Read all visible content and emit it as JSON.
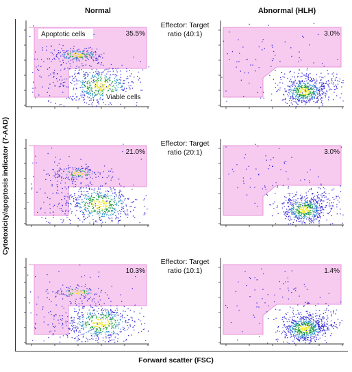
{
  "figure": {
    "column_titles": [
      "Normal",
      "Abnormal (HLH)"
    ],
    "row_labels": [
      [
        "Effector: Target",
        "ratio (40:1)"
      ],
      [
        "Effector: Target",
        "ratio (20:1)"
      ],
      [
        "Effector: Target",
        "ratio (10:1)"
      ]
    ],
    "y_axis_label": "Cytotoxicity/apoptosis indicator (7-AAD)",
    "x_axis_label": "Forward scatter (FSC)"
  },
  "colors": {
    "gate_fill": "#f7c8f0",
    "gate_stroke": "#e58fd9",
    "dot_low": "#3a2fd6",
    "dot_mid": "#1f9f3a",
    "dot_high": "#f1ea2a"
  },
  "chart_data": [
    {
      "type": "scatter",
      "column": "Normal",
      "ratio": "40:1",
      "apoptotic_percent": "35.5%",
      "gate_labels": [
        "Apoptotic cells",
        "Viable cells"
      ]
    },
    {
      "type": "scatter",
      "column": "Abnormal (HLH)",
      "ratio": "40:1",
      "apoptotic_percent": "3.0%",
      "gate_labels": []
    },
    {
      "type": "scatter",
      "column": "Normal",
      "ratio": "20:1",
      "apoptotic_percent": "21.0%",
      "gate_labels": []
    },
    {
      "type": "scatter",
      "column": "Abnormal (HLH)",
      "ratio": "20:1",
      "apoptotic_percent": "3.0%",
      "gate_labels": []
    },
    {
      "type": "scatter",
      "column": "Normal",
      "ratio": "10:1",
      "apoptotic_percent": "10.3%",
      "gate_labels": []
    },
    {
      "type": "scatter",
      "column": "Abnormal (HLH)",
      "ratio": "10:1",
      "apoptotic_percent": "1.4%",
      "gate_labels": []
    }
  ]
}
